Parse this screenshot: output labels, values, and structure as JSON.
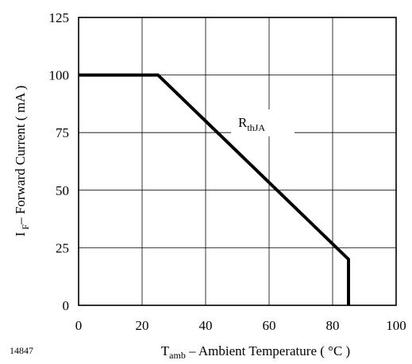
{
  "chart_data": {
    "type": "line",
    "x_ticks": [
      "0",
      "20",
      "40",
      "60",
      "80",
      "100"
    ],
    "y_ticks": [
      "0",
      "25",
      "50",
      "75",
      "100",
      "125"
    ],
    "xlim": [
      0,
      100
    ],
    "ylim": [
      0,
      125
    ],
    "grid": true,
    "xlabel": {
      "main": "T",
      "sub": "amb",
      "rest": " – Ambient Temperature ( °C )"
    },
    "ylabel": {
      "main": "I",
      "sub": "F",
      "rest": "– Forward Current  ( mA )"
    },
    "annotation": {
      "main": "R",
      "sub": "thJA"
    },
    "figure_id": "14847",
    "series": [
      {
        "x": [
          0,
          25,
          85,
          85
        ],
        "y": [
          100,
          100,
          20,
          0
        ]
      }
    ],
    "line_color": "#000000"
  }
}
